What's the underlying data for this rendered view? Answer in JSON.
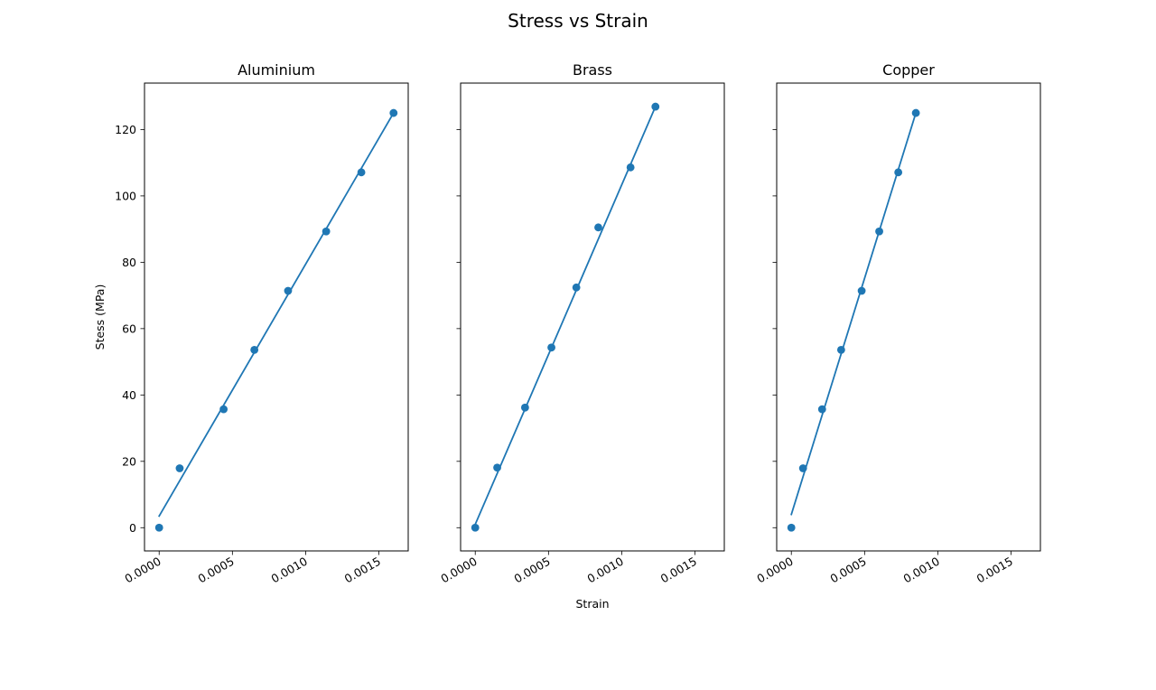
{
  "figure": {
    "suptitle": "Stress vs Strain",
    "series_color": "#1f77b4"
  },
  "chart_data": [
    {
      "type": "scatter",
      "title": "Aluminium",
      "xlabel": "",
      "ylabel": "Stess (MPa)",
      "xlim": [
        -0.0001,
        0.0017
      ],
      "ylim": [
        -7,
        134
      ],
      "xticks": [
        0.0,
        0.0005,
        0.001,
        0.0015
      ],
      "xtick_labels": [
        "0.0000",
        "0.0005",
        "0.0010",
        "0.0015"
      ],
      "yticks": [
        0,
        20,
        40,
        60,
        80,
        100,
        120
      ],
      "ytick_labels": [
        "0",
        "20",
        "40",
        "60",
        "80",
        "100",
        "120"
      ],
      "show_ytick_labels": true,
      "grid": false,
      "points": {
        "x": [
          0.0,
          0.00014,
          0.00044,
          0.00065,
          0.00088,
          0.00114,
          0.00138,
          0.0016
        ],
        "y": [
          0.0,
          17.9,
          35.7,
          53.6,
          71.4,
          89.3,
          107.1,
          125.0
        ]
      },
      "fit_line": {
        "x": [
          0.0,
          0.0016
        ],
        "y": [
          3.5,
          125.0
        ]
      }
    },
    {
      "type": "scatter",
      "title": "Brass",
      "xlabel": "Strain",
      "ylabel": "",
      "xlim": [
        -0.0001,
        0.0017
      ],
      "ylim": [
        -7,
        134
      ],
      "xticks": [
        0.0,
        0.0005,
        0.001,
        0.0015
      ],
      "xtick_labels": [
        "0.0000",
        "0.0005",
        "0.0010",
        "0.0015"
      ],
      "yticks": [
        0,
        20,
        40,
        60,
        80,
        100,
        120
      ],
      "ytick_labels": [
        "0",
        "20",
        "40",
        "60",
        "80",
        "100",
        "120"
      ],
      "show_ytick_labels": false,
      "grid": false,
      "points": {
        "x": [
          0.0,
          0.00015,
          0.00034,
          0.00052,
          0.00069,
          0.00084,
          0.00106,
          0.00123
        ],
        "y": [
          0.0,
          18.1,
          36.2,
          54.3,
          72.4,
          90.5,
          108.6,
          126.9
        ]
      },
      "fit_line": {
        "x": [
          0.0,
          0.00123
        ],
        "y": [
          1.0,
          126.9
        ]
      }
    },
    {
      "type": "scatter",
      "title": "Copper",
      "xlabel": "",
      "ylabel": "",
      "xlim": [
        -0.0001,
        0.0017
      ],
      "ylim": [
        -7,
        134
      ],
      "xticks": [
        0.0,
        0.0005,
        0.001,
        0.0015
      ],
      "xtick_labels": [
        "0.0000",
        "0.0005",
        "0.0010",
        "0.0015"
      ],
      "yticks": [
        0,
        20,
        40,
        60,
        80,
        100,
        120
      ],
      "ytick_labels": [
        "0",
        "20",
        "40",
        "60",
        "80",
        "100",
        "120"
      ],
      "show_ytick_labels": false,
      "grid": false,
      "points": {
        "x": [
          0.0,
          8e-05,
          0.00021,
          0.00034,
          0.00048,
          0.0006,
          0.00073,
          0.00085
        ],
        "y": [
          0.0,
          17.9,
          35.7,
          53.6,
          71.4,
          89.3,
          107.1,
          125.0
        ]
      },
      "fit_line": {
        "x": [
          0.0,
          0.00085
        ],
        "y": [
          4.0,
          125.0
        ]
      }
    }
  ]
}
